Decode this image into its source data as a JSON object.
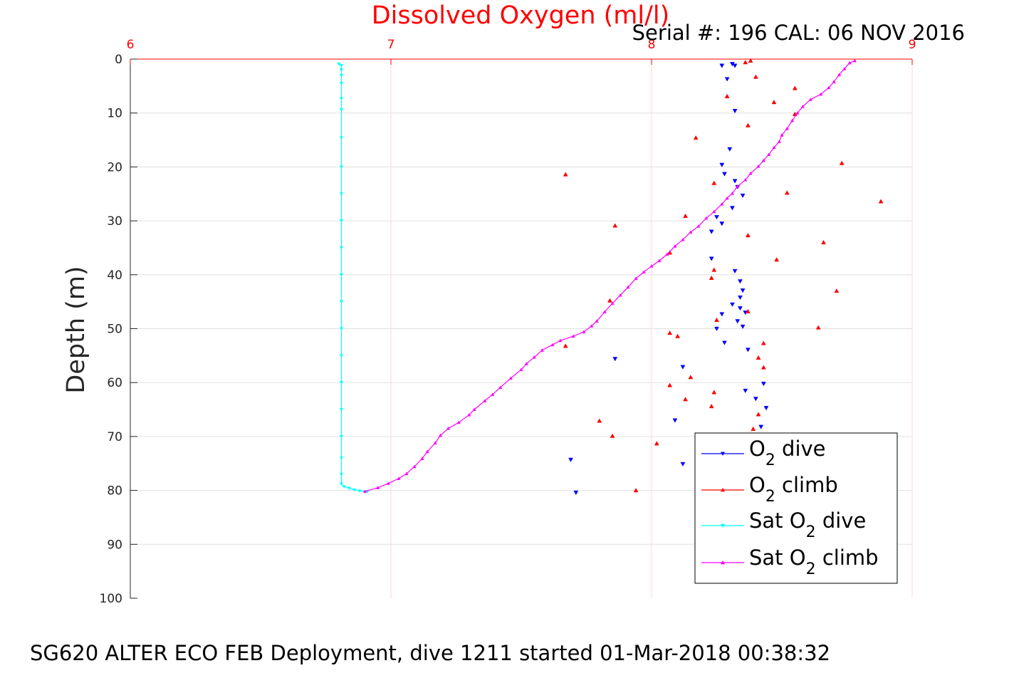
{
  "chart_data": {
    "type": "scatter",
    "title": "Dissolved Oxygen (ml/l)",
    "subtitle": "Serial #: 196  CAL: 06 NOV 2016",
    "ylabel": "Depth (m)",
    "caption": "SG620 ALTER ECO FEB Deployment, dive 1211 started 01-Mar-2018 00:38:32",
    "xlim": [
      6,
      9
    ],
    "ylim": [
      0,
      100
    ],
    "y_reversed": true,
    "x_axis_position": "top",
    "xticks": [
      "6",
      "7",
      "8",
      "9"
    ],
    "yticks": [
      "0",
      "10",
      "20",
      "30",
      "40",
      "50",
      "60",
      "70",
      "80",
      "90",
      "100"
    ],
    "grid": true,
    "legend_position": "bottom-right",
    "colors": {
      "o2_dive": "#0000ff",
      "o2_climb": "#ff0000",
      "sat_dive": "#00ffff",
      "sat_climb": "#ff00ff",
      "title": "#ff0000",
      "xgrid": "#ffd6d6",
      "ygrid": "#e0e0e0"
    },
    "legend": [
      {
        "key": "o2_dive",
        "pre": "O",
        "sub": "2",
        "post": " dive",
        "marker": "down"
      },
      {
        "key": "o2_climb",
        "pre": "O",
        "sub": "2",
        "post": " climb",
        "marker": "up"
      },
      {
        "key": "sat_dive",
        "pre": "Sat O",
        "sub": "2",
        "post": " dive",
        "marker": "down"
      },
      {
        "key": "sat_climb",
        "pre": "Sat O",
        "sub": "2",
        "post": " climb",
        "marker": "up"
      }
    ],
    "series": [
      {
        "name": "O2 dive",
        "key": "o2_dive",
        "style": "markers",
        "marker": "down",
        "points": [
          [
            8.27,
            1.2
          ],
          [
            8.31,
            0.9
          ],
          [
            8.32,
            1.2
          ],
          [
            8.29,
            3.7
          ],
          [
            8.32,
            9.6
          ],
          [
            8.3,
            16.7
          ],
          [
            8.27,
            19.6
          ],
          [
            8.28,
            21.3
          ],
          [
            8.32,
            22.6
          ],
          [
            8.33,
            23.7
          ],
          [
            8.35,
            25.3
          ],
          [
            8.31,
            27.6
          ],
          [
            8.25,
            29.3
          ],
          [
            8.27,
            30.5
          ],
          [
            8.23,
            32.0
          ],
          [
            8.23,
            37.0
          ],
          [
            8.32,
            39.3
          ],
          [
            8.34,
            41.2
          ],
          [
            8.35,
            42.9
          ],
          [
            8.34,
            44.2
          ],
          [
            8.31,
            45.5
          ],
          [
            8.34,
            46.2
          ],
          [
            8.27,
            47.3
          ],
          [
            8.36,
            47.0
          ],
          [
            8.33,
            48.6
          ],
          [
            8.35,
            49.6
          ],
          [
            8.25,
            50.0
          ],
          [
            8.28,
            52.6
          ],
          [
            8.37,
            53.9
          ],
          [
            8.12,
            57.1
          ],
          [
            8.43,
            60.2
          ],
          [
            8.36,
            61.5
          ],
          [
            8.4,
            63.0
          ],
          [
            8.44,
            64.7
          ],
          [
            8.09,
            67.0
          ],
          [
            8.42,
            68.2
          ],
          [
            7.86,
            55.6
          ],
          [
            7.69,
            74.3
          ],
          [
            8.12,
            75.1
          ],
          [
            7.71,
            80.4
          ]
        ]
      },
      {
        "name": "O2 climb",
        "key": "o2_climb",
        "style": "markers",
        "marker": "up",
        "points": [
          [
            8.38,
            0.3
          ],
          [
            8.36,
            0.6
          ],
          [
            8.4,
            3.3
          ],
          [
            8.29,
            6.9
          ],
          [
            8.47,
            8.0
          ],
          [
            8.55,
            5.4
          ],
          [
            8.55,
            10.2
          ],
          [
            8.37,
            12.3
          ],
          [
            8.17,
            14.6
          ],
          [
            8.73,
            19.3
          ],
          [
            8.24,
            23.0
          ],
          [
            8.52,
            24.8
          ],
          [
            8.88,
            26.4
          ],
          [
            8.13,
            29.1
          ],
          [
            7.67,
            21.4
          ],
          [
            7.86,
            30.9
          ],
          [
            8.37,
            32.7
          ],
          [
            8.66,
            34.0
          ],
          [
            8.48,
            37.2
          ],
          [
            8.07,
            35.9
          ],
          [
            8.24,
            39.1
          ],
          [
            8.23,
            40.6
          ],
          [
            8.71,
            43.0
          ],
          [
            7.84,
            44.8
          ],
          [
            8.37,
            46.8
          ],
          [
            8.25,
            48.4
          ],
          [
            8.64,
            49.8
          ],
          [
            8.07,
            50.8
          ],
          [
            8.1,
            51.4
          ],
          [
            7.67,
            53.2
          ],
          [
            8.43,
            52.7
          ],
          [
            8.41,
            55.4
          ],
          [
            8.43,
            57.2
          ],
          [
            8.15,
            59.0
          ],
          [
            8.07,
            60.5
          ],
          [
            8.24,
            61.8
          ],
          [
            8.13,
            63.1
          ],
          [
            8.23,
            64.4
          ],
          [
            8.41,
            65.9
          ],
          [
            7.8,
            67.1
          ],
          [
            8.39,
            68.6
          ],
          [
            7.85,
            69.9
          ],
          [
            8.02,
            71.3
          ],
          [
            7.94,
            80.0
          ]
        ]
      },
      {
        "name": "Sat O2 dive",
        "key": "sat_dive",
        "style": "line-markers",
        "marker": "down",
        "points": [
          [
            6.8,
            0.9
          ],
          [
            6.81,
            1.2
          ],
          [
            6.81,
            2.0
          ],
          [
            6.81,
            3.0
          ],
          [
            6.81,
            4.5
          ],
          [
            6.81,
            7.3
          ],
          [
            6.81,
            9.4
          ],
          [
            6.81,
            14.6
          ],
          [
            6.81,
            20.0
          ],
          [
            6.81,
            25.0
          ],
          [
            6.81,
            30.0
          ],
          [
            6.81,
            35.0
          ],
          [
            6.81,
            40.0
          ],
          [
            6.81,
            45.0
          ],
          [
            6.81,
            50.0
          ],
          [
            6.81,
            55.0
          ],
          [
            6.81,
            60.0
          ],
          [
            6.81,
            65.0
          ],
          [
            6.81,
            70.0
          ],
          [
            6.81,
            74.0
          ],
          [
            6.81,
            77.0
          ],
          [
            6.81,
            78.8
          ],
          [
            6.82,
            79.3
          ],
          [
            6.84,
            79.6
          ],
          [
            6.86,
            79.9
          ],
          [
            6.88,
            80.1
          ],
          [
            6.91,
            80.2
          ]
        ]
      },
      {
        "name": "Sat O2 climb",
        "key": "sat_climb",
        "style": "line-markers",
        "marker": "up",
        "points": [
          [
            6.9,
            80.2
          ],
          [
            6.95,
            79.5
          ],
          [
            6.99,
            78.7
          ],
          [
            7.03,
            77.8
          ],
          [
            7.06,
            76.9
          ],
          [
            7.09,
            75.6
          ],
          [
            7.12,
            74.1
          ],
          [
            7.14,
            72.8
          ],
          [
            7.17,
            71.2
          ],
          [
            7.19,
            69.8
          ],
          [
            7.22,
            68.5
          ],
          [
            7.26,
            67.4
          ],
          [
            7.3,
            66.0
          ],
          [
            7.32,
            65.0
          ],
          [
            7.36,
            63.4
          ],
          [
            7.39,
            62.2
          ],
          [
            7.42,
            60.9
          ],
          [
            7.46,
            59.2
          ],
          [
            7.5,
            57.6
          ],
          [
            7.52,
            56.5
          ],
          [
            7.55,
            55.3
          ],
          [
            7.58,
            54.0
          ],
          [
            7.62,
            53.0
          ],
          [
            7.65,
            52.2
          ],
          [
            7.7,
            51.4
          ],
          [
            7.74,
            50.6
          ],
          [
            7.77,
            49.5
          ],
          [
            7.79,
            48.6
          ],
          [
            7.82,
            46.9
          ],
          [
            7.85,
            45.3
          ],
          [
            7.88,
            43.8
          ],
          [
            7.91,
            42.3
          ],
          [
            7.94,
            40.7
          ],
          [
            7.97,
            39.5
          ],
          [
            8.0,
            38.4
          ],
          [
            8.03,
            37.4
          ],
          [
            8.06,
            36.2
          ],
          [
            8.09,
            34.7
          ],
          [
            8.12,
            33.5
          ],
          [
            8.15,
            32.1
          ],
          [
            8.18,
            31.0
          ],
          [
            8.21,
            29.5
          ],
          [
            8.24,
            28.3
          ],
          [
            8.27,
            26.9
          ],
          [
            8.29,
            25.8
          ],
          [
            8.31,
            24.9
          ],
          [
            8.33,
            23.6
          ],
          [
            8.36,
            22.4
          ],
          [
            8.38,
            21.2
          ],
          [
            8.41,
            19.9
          ],
          [
            8.43,
            18.8
          ],
          [
            8.45,
            17.7
          ],
          [
            8.47,
            16.4
          ],
          [
            8.49,
            15.3
          ],
          [
            8.5,
            14.1
          ],
          [
            8.52,
            12.9
          ],
          [
            8.54,
            11.4
          ],
          [
            8.56,
            10.0
          ],
          [
            8.58,
            8.8
          ],
          [
            8.61,
            7.5
          ],
          [
            8.65,
            6.5
          ],
          [
            8.68,
            5.3
          ],
          [
            8.7,
            4.2
          ],
          [
            8.72,
            2.9
          ],
          [
            8.74,
            1.8
          ],
          [
            8.76,
            0.7
          ],
          [
            8.78,
            0.3
          ]
        ]
      }
    ]
  }
}
